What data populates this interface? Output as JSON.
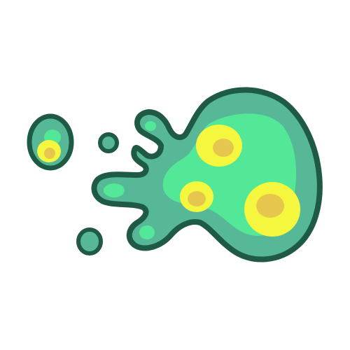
{
  "illustration": {
    "subject": "slime-splat-icon",
    "colors": {
      "outline": "#1f5a45",
      "body": "#56b896",
      "body_highlight": "#52e898",
      "spot_outer": "#f5f73f",
      "spot_inner": "#e6c64c",
      "background": "#ffffff"
    }
  }
}
